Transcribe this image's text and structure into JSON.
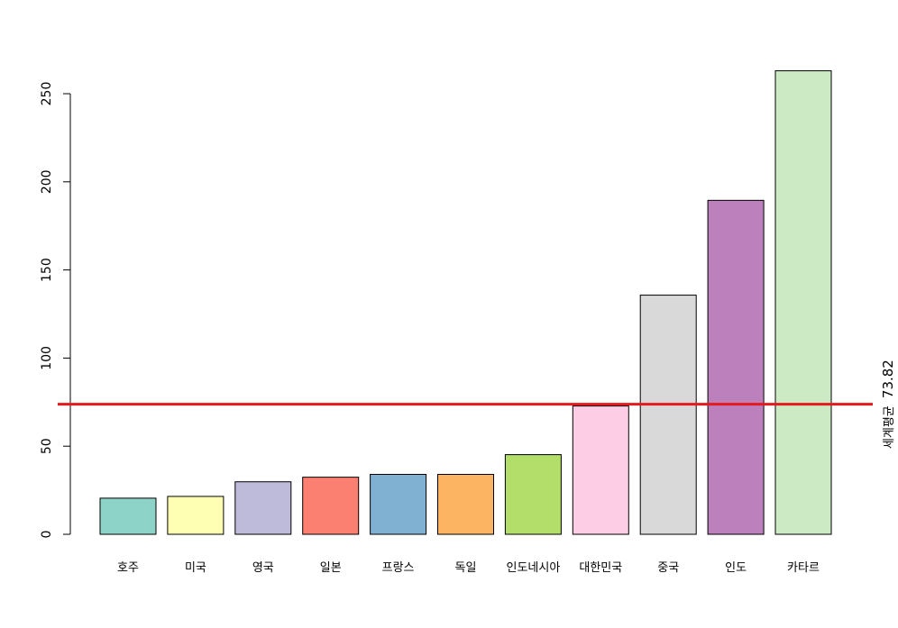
{
  "chart_data": {
    "type": "bar",
    "title": "",
    "xlabel": "",
    "ylabel": "",
    "ylim": [
      0,
      270
    ],
    "yticks": [
      0,
      50,
      100,
      150,
      200,
      250
    ],
    "categories": [
      "호주",
      "미국",
      "영국",
      "일본",
      "프랑스",
      "독일",
      "인도네시아",
      "대한민국",
      "중국",
      "인도",
      "카타르"
    ],
    "values": [
      20.5,
      21.5,
      29.8,
      32.4,
      34,
      34,
      45.2,
      72.8,
      135.7,
      189.5,
      263
    ],
    "colors": [
      "#8dd3c7",
      "#ffffb3",
      "#bebada",
      "#fb8072",
      "#80b1d3",
      "#fdb462",
      "#b3de69",
      "#fccde5",
      "#d9d9d9",
      "#bc80bd",
      "#ccebc5"
    ],
    "reference_line": {
      "value": 73.82,
      "color": "#e41a1c",
      "label_prefix": "세계평균",
      "label_value": "73.82"
    }
  }
}
